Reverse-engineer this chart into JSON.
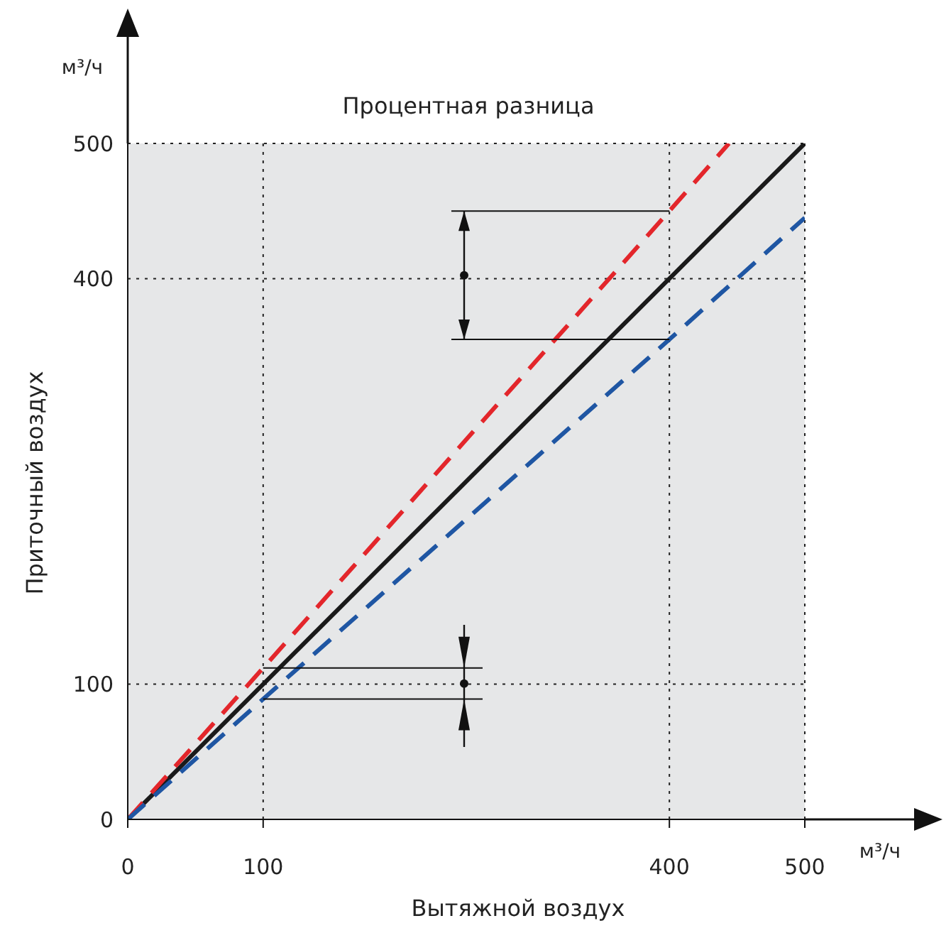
{
  "chart_data": {
    "type": "line",
    "title": "Процентная разница",
    "xlabel": "Вытяжной воздух",
    "ylabel": "Приточный воздух",
    "annotations": [
      "м³/ч",
      "м³/ч"
    ],
    "xlim": [
      0,
      500
    ],
    "ylim": [
      0,
      500
    ],
    "xticks": [
      0,
      100,
      400,
      500
    ],
    "yticks": [
      0,
      100,
      400,
      500
    ],
    "grid": true,
    "legend": false,
    "marker": "none",
    "series": [
      {
        "color": "#1a1a1a",
        "line_style": "solid",
        "x": [
          0,
          500
        ],
        "values": [
          0,
          500
        ]
      },
      {
        "color": "#e3262b",
        "line_style": "dashed",
        "x": [
          0,
          100,
          400,
          444
        ],
        "values": [
          0,
          112,
          450,
          500
        ]
      },
      {
        "color": "#1f56a3",
        "line_style": "dashed",
        "x": [
          0,
          100,
          400,
          500
        ],
        "values": [
          0,
          89,
          355,
          445
        ]
      }
    ]
  }
}
